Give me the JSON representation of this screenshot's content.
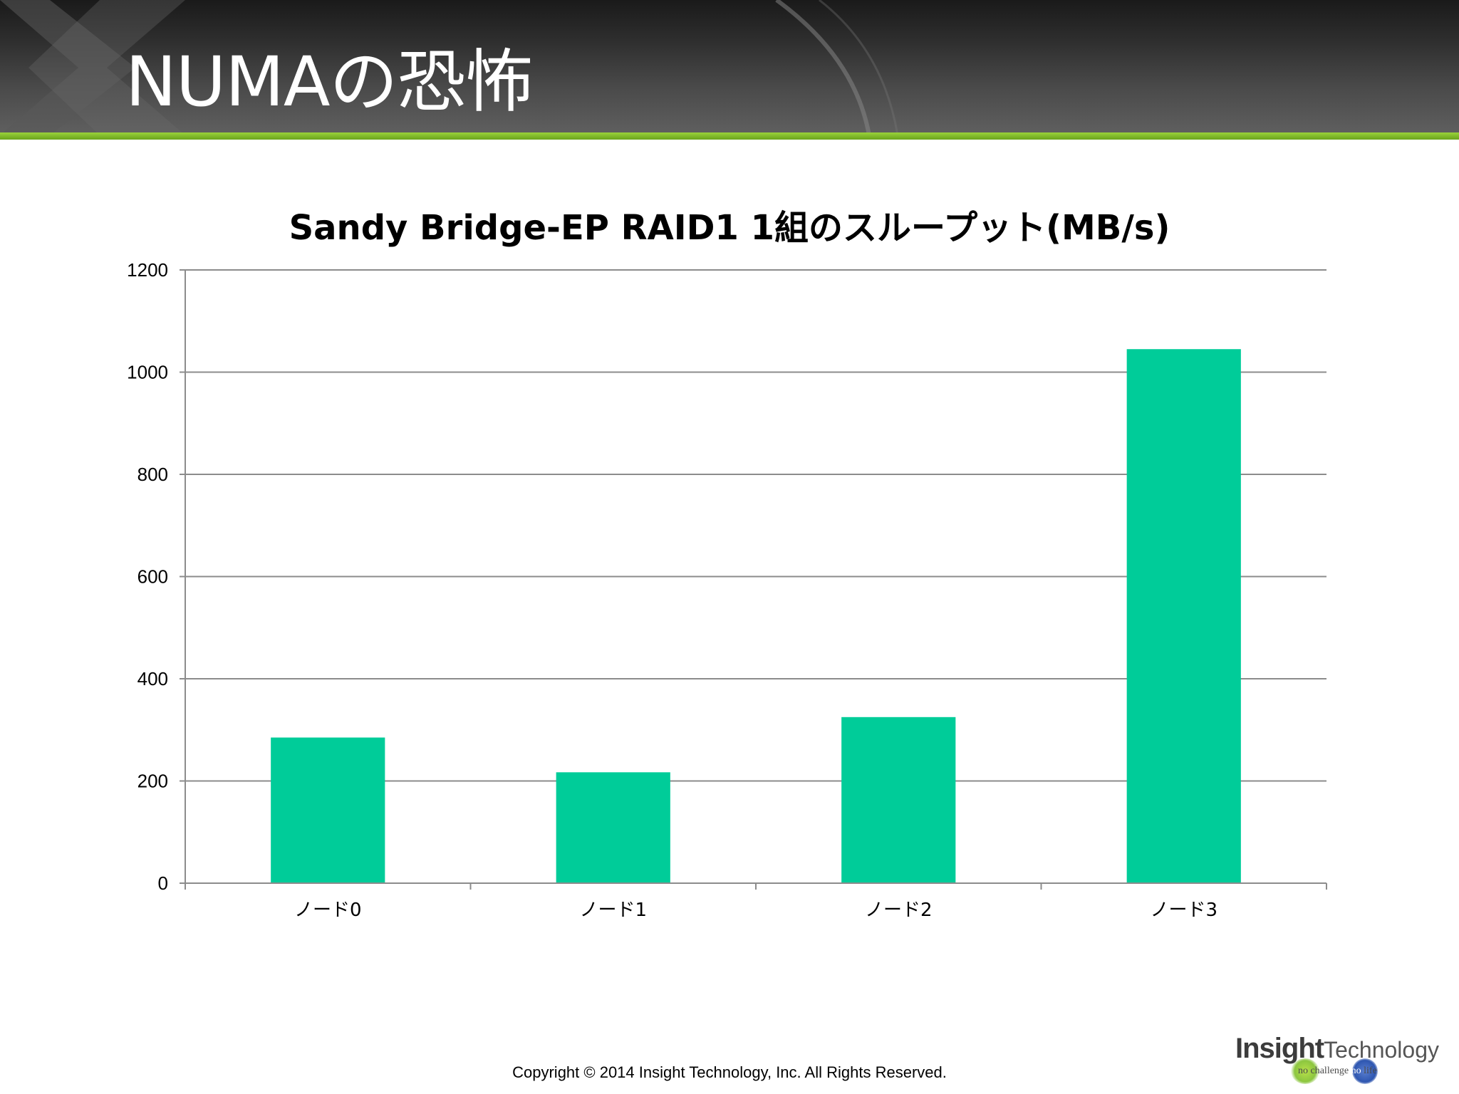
{
  "slide": {
    "title": "NUMAの恐怖",
    "copyright": "Copyright © 2014 Insight Technology, Inc. All Rights Reserved.",
    "logo": {
      "insight": "Insight",
      "technology": "Technology",
      "tagline_no1": "no",
      "tagline_challenge": "challenge",
      "tagline_no2": "no",
      "tagline_life": "life"
    },
    "accent_color": "#7cb82a"
  },
  "chart_data": {
    "type": "bar",
    "title": "Sandy Bridge-EP RAID1 1組のスループット(MB/s)",
    "categories": [
      "ノード0",
      "ノード1",
      "ノード2",
      "ノード3"
    ],
    "values": [
      285,
      217,
      325,
      1045
    ],
    "xlabel": "",
    "ylabel": "",
    "ylim": [
      0,
      1200
    ],
    "yticks": [
      0,
      200,
      400,
      600,
      800,
      1000,
      1200
    ],
    "grid": true,
    "legend": "none",
    "bar_color": "#00cc99"
  }
}
